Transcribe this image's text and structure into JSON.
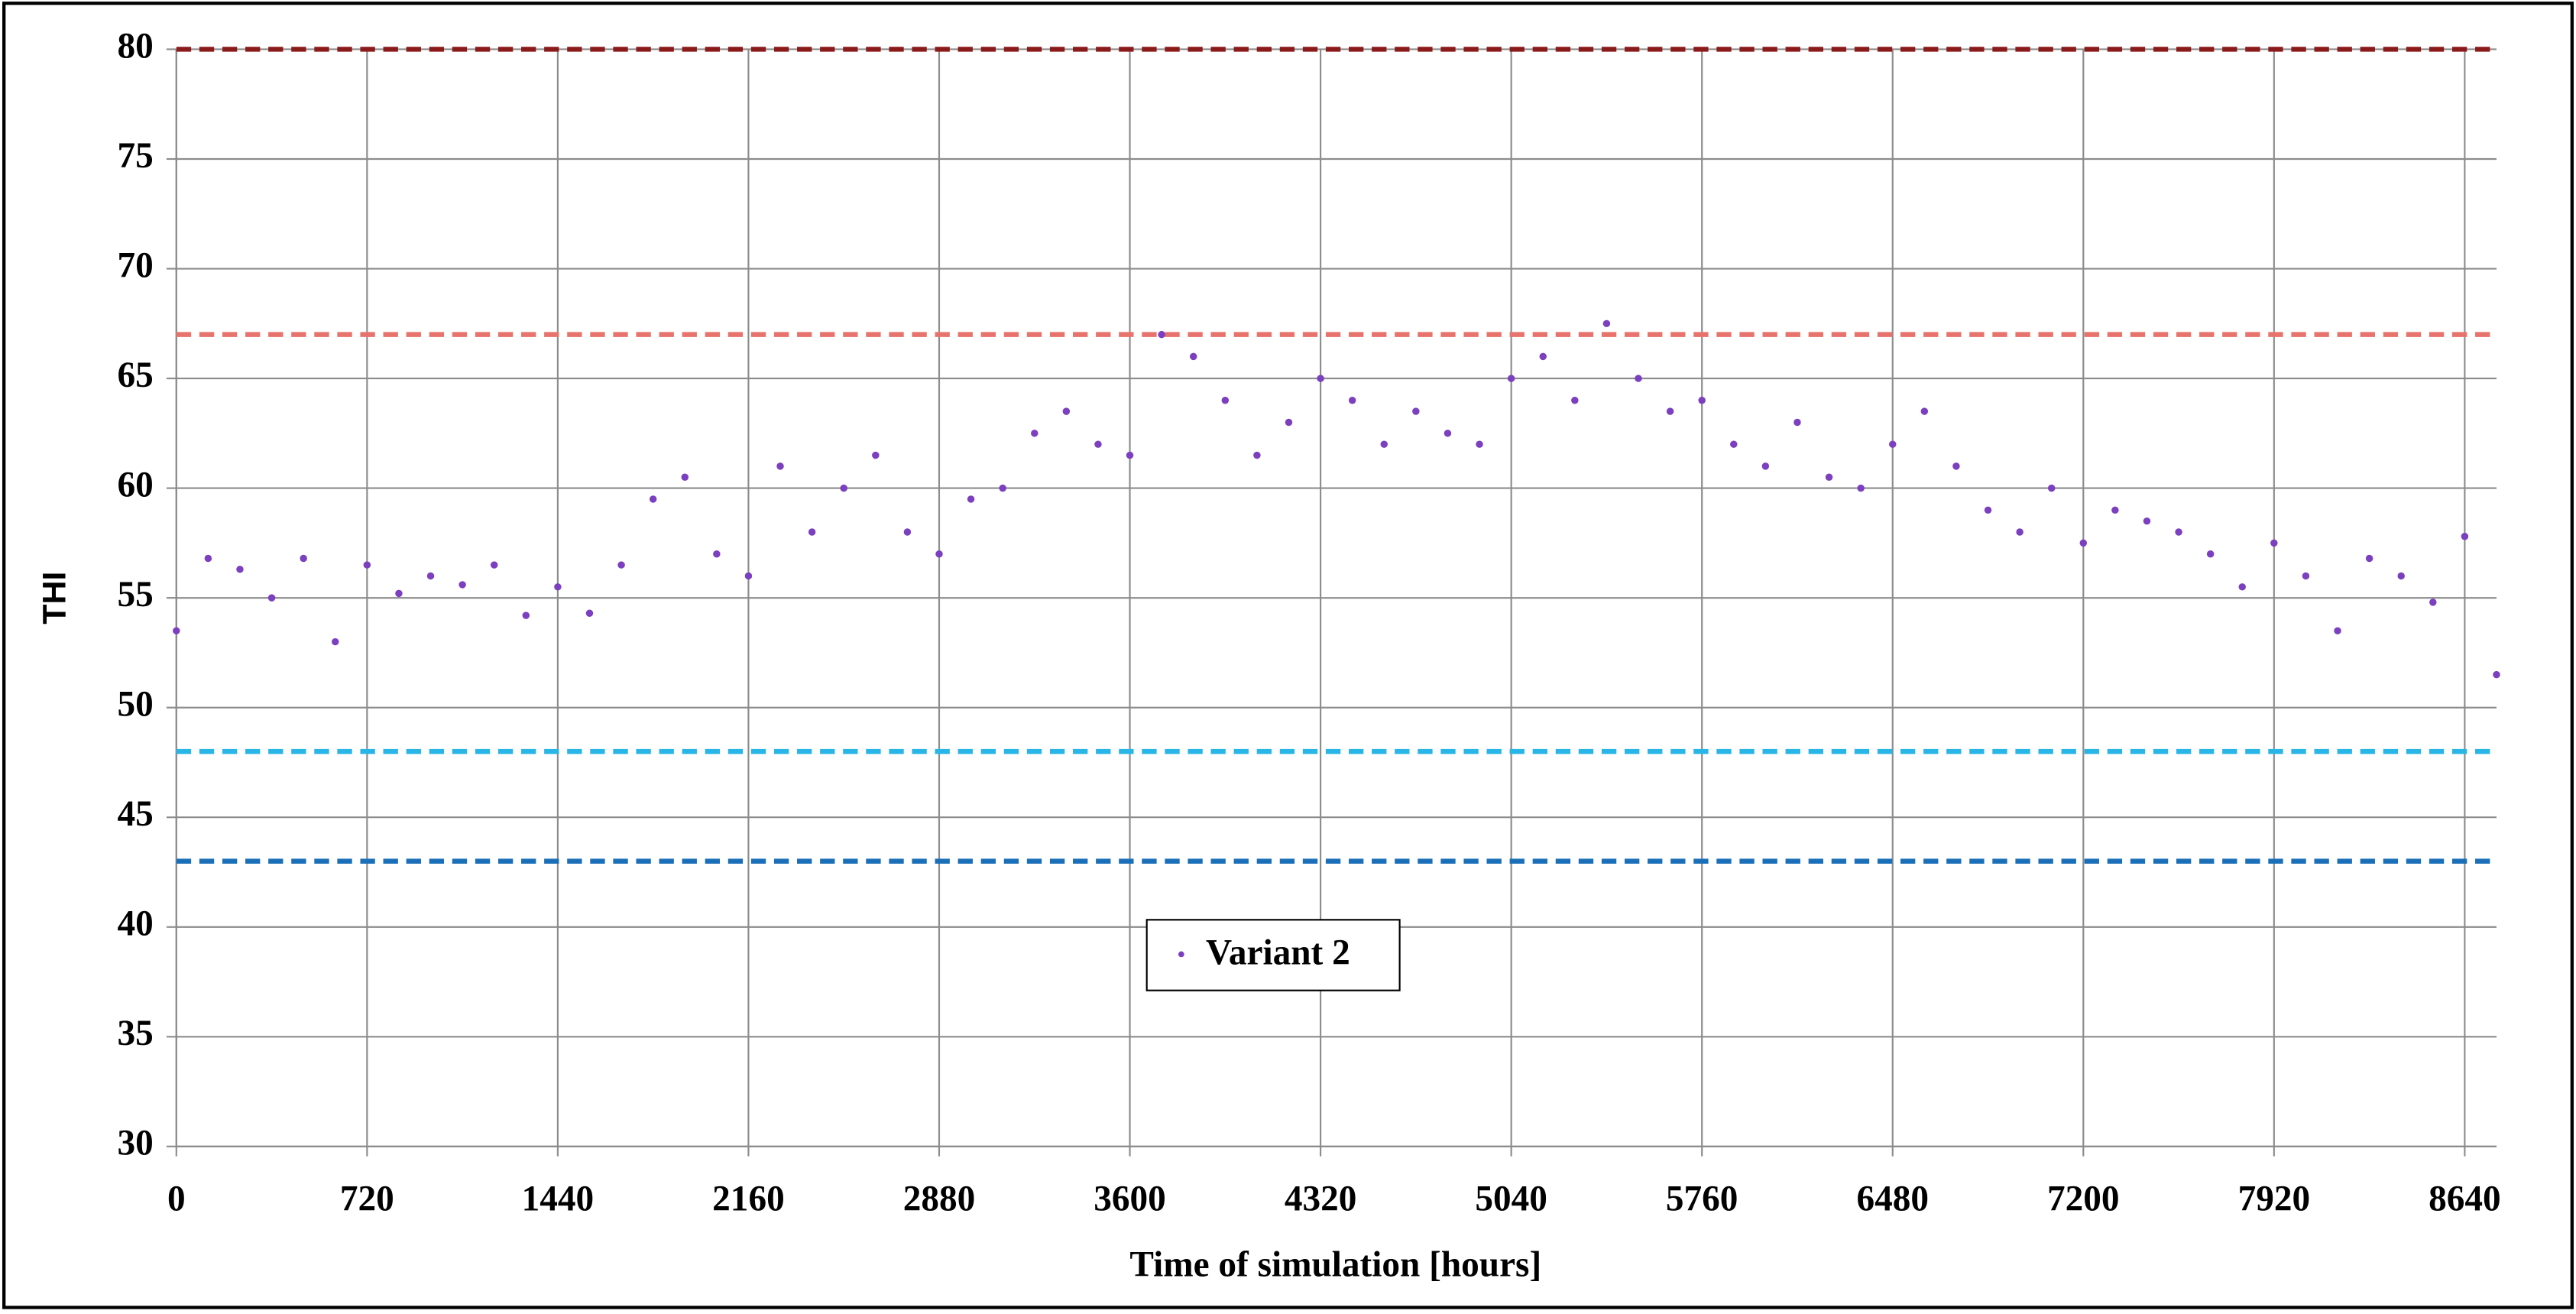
{
  "chart_data": {
    "type": "scatter",
    "xlabel": "Time of simulation [hours]",
    "ylabel": "THI",
    "x": [
      0,
      120,
      240,
      360,
      480,
      600,
      720,
      840,
      960,
      1080,
      1200,
      1320,
      1440,
      1560,
      1680,
      1800,
      1920,
      2040,
      2160,
      2280,
      2400,
      2520,
      2640,
      2760,
      2880,
      3000,
      3120,
      3240,
      3360,
      3480,
      3600,
      3720,
      3840,
      3960,
      4080,
      4200,
      4320,
      4440,
      4560,
      4680,
      4800,
      4920,
      5040,
      5160,
      5280,
      5400,
      5520,
      5640,
      5760,
      5880,
      6000,
      6120,
      6240,
      6360,
      6480,
      6600,
      6720,
      6840,
      6960,
      7080,
      7200,
      7320,
      7440,
      7560,
      7680,
      7800,
      7920,
      8040,
      8160,
      8280,
      8400,
      8520,
      8640,
      8760
    ],
    "series": [
      {
        "name": "Variant 2",
        "color": "#7b3fbf",
        "values": [
          53.5,
          56.8,
          56.3,
          55,
          56.8,
          53,
          56.5,
          55.2,
          56,
          55.6,
          56.5,
          54.2,
          55.5,
          54.3,
          56.5,
          59.5,
          60.5,
          57,
          56,
          61,
          58,
          60,
          61.5,
          58,
          57,
          59.5,
          60,
          62.5,
          63.5,
          62,
          61.5,
          67,
          66,
          64,
          61.5,
          63,
          65,
          64,
          62,
          63.5,
          62.5,
          62,
          65,
          66,
          64,
          67.5,
          65,
          63.5,
          64,
          62,
          61,
          63,
          60.5,
          60,
          62,
          63.5,
          61,
          59,
          58,
          60,
          57.5,
          59,
          58.5,
          58,
          57,
          55.5,
          57.5,
          56,
          53.5,
          56.8,
          56,
          54.8,
          57.8,
          51.5
        ]
      }
    ],
    "hlines": [
      {
        "value": 80,
        "color": "#8b1a1a"
      },
      {
        "value": 67,
        "color": "#e8736c"
      },
      {
        "value": 48,
        "color": "#29b6e6"
      },
      {
        "value": 43,
        "color": "#1a6fb8"
      }
    ],
    "xlim": [
      0,
      8760
    ],
    "ylim": [
      30,
      80
    ],
    "xticks": [
      0,
      720,
      1440,
      2160,
      2880,
      3600,
      4320,
      5040,
      5760,
      6480,
      7200,
      7920,
      8640
    ],
    "yticks": [
      30,
      35,
      40,
      45,
      50,
      55,
      60,
      65,
      70,
      75,
      80
    ],
    "grid": true,
    "legend": "center"
  }
}
